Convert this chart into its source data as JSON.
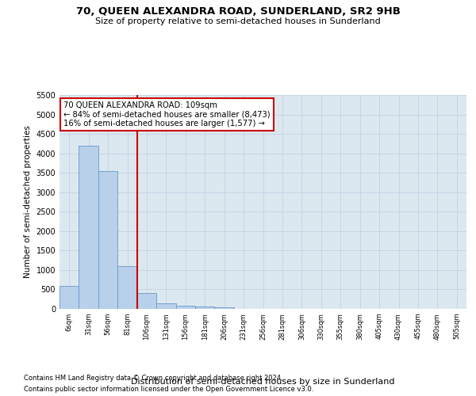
{
  "title": "70, QUEEN ALEXANDRA ROAD, SUNDERLAND, SR2 9HB",
  "subtitle": "Size of property relative to semi-detached houses in Sunderland",
  "xlabel": "Distribution of semi-detached houses by size in Sunderland",
  "ylabel": "Number of semi-detached properties",
  "footnote1": "Contains HM Land Registry data © Crown copyright and database right 2024.",
  "footnote2": "Contains public sector information licensed under the Open Government Licence v3.0.",
  "bar_labels": [
    "6sqm",
    "31sqm",
    "56sqm",
    "81sqm",
    "106sqm",
    "131sqm",
    "156sqm",
    "181sqm",
    "206sqm",
    "231sqm",
    "256sqm",
    "281sqm",
    "306sqm",
    "330sqm",
    "355sqm",
    "380sqm",
    "405sqm",
    "430sqm",
    "455sqm",
    "480sqm",
    "505sqm"
  ],
  "bar_values": [
    600,
    4200,
    3550,
    1100,
    400,
    150,
    80,
    60,
    50,
    0,
    0,
    0,
    0,
    0,
    0,
    0,
    0,
    0,
    0,
    0,
    0
  ],
  "bar_color": "#b8d0ea",
  "bar_edge_color": "#6699cc",
  "annotation_text": "70 QUEEN ALEXANDRA ROAD: 109sqm\n← 84% of semi-detached houses are smaller (8,473)\n16% of semi-detached houses are larger (1,577) →",
  "vline_x": 3.5,
  "vline_color": "#cc0000",
  "annotation_box_color": "#ffffff",
  "annotation_box_edge": "#cc0000",
  "ylim": [
    0,
    5500
  ],
  "yticks": [
    0,
    500,
    1000,
    1500,
    2000,
    2500,
    3000,
    3500,
    4000,
    4500,
    5000,
    5500
  ],
  "background_color": "#ffffff",
  "grid_color": "#c8d4e4",
  "ax_bg_color": "#dce8f0"
}
